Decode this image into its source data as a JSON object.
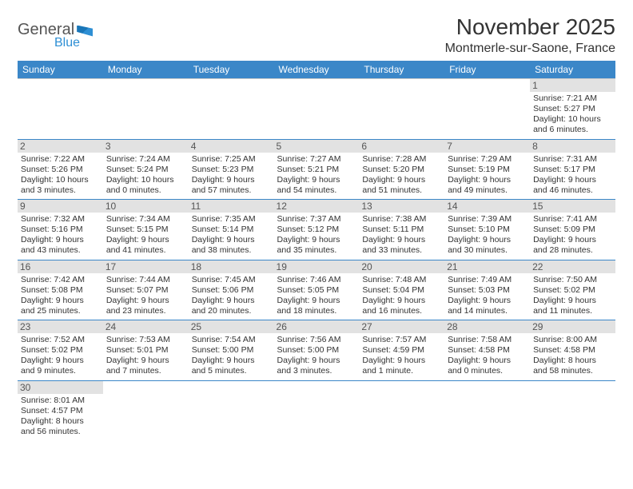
{
  "brand": {
    "part1": "General",
    "part2": "Blue"
  },
  "title": "November 2025",
  "location": "Montmerle-sur-Saone, France",
  "colors": {
    "header_bg": "#3b87c8",
    "header_text": "#ffffff",
    "daynum_bg": "#e2e2e2",
    "border": "#3b87c8",
    "text": "#333333"
  },
  "weekdays": [
    "Sunday",
    "Monday",
    "Tuesday",
    "Wednesday",
    "Thursday",
    "Friday",
    "Saturday"
  ],
  "weeks": [
    [
      {
        "n": "",
        "sr": "",
        "ss": "",
        "dl": ""
      },
      {
        "n": "",
        "sr": "",
        "ss": "",
        "dl": ""
      },
      {
        "n": "",
        "sr": "",
        "ss": "",
        "dl": ""
      },
      {
        "n": "",
        "sr": "",
        "ss": "",
        "dl": ""
      },
      {
        "n": "",
        "sr": "",
        "ss": "",
        "dl": ""
      },
      {
        "n": "",
        "sr": "",
        "ss": "",
        "dl": ""
      },
      {
        "n": "1",
        "sr": "Sunrise: 7:21 AM",
        "ss": "Sunset: 5:27 PM",
        "dl": "Daylight: 10 hours and 6 minutes."
      }
    ],
    [
      {
        "n": "2",
        "sr": "Sunrise: 7:22 AM",
        "ss": "Sunset: 5:26 PM",
        "dl": "Daylight: 10 hours and 3 minutes."
      },
      {
        "n": "3",
        "sr": "Sunrise: 7:24 AM",
        "ss": "Sunset: 5:24 PM",
        "dl": "Daylight: 10 hours and 0 minutes."
      },
      {
        "n": "4",
        "sr": "Sunrise: 7:25 AM",
        "ss": "Sunset: 5:23 PM",
        "dl": "Daylight: 9 hours and 57 minutes."
      },
      {
        "n": "5",
        "sr": "Sunrise: 7:27 AM",
        "ss": "Sunset: 5:21 PM",
        "dl": "Daylight: 9 hours and 54 minutes."
      },
      {
        "n": "6",
        "sr": "Sunrise: 7:28 AM",
        "ss": "Sunset: 5:20 PM",
        "dl": "Daylight: 9 hours and 51 minutes."
      },
      {
        "n": "7",
        "sr": "Sunrise: 7:29 AM",
        "ss": "Sunset: 5:19 PM",
        "dl": "Daylight: 9 hours and 49 minutes."
      },
      {
        "n": "8",
        "sr": "Sunrise: 7:31 AM",
        "ss": "Sunset: 5:17 PM",
        "dl": "Daylight: 9 hours and 46 minutes."
      }
    ],
    [
      {
        "n": "9",
        "sr": "Sunrise: 7:32 AM",
        "ss": "Sunset: 5:16 PM",
        "dl": "Daylight: 9 hours and 43 minutes."
      },
      {
        "n": "10",
        "sr": "Sunrise: 7:34 AM",
        "ss": "Sunset: 5:15 PM",
        "dl": "Daylight: 9 hours and 41 minutes."
      },
      {
        "n": "11",
        "sr": "Sunrise: 7:35 AM",
        "ss": "Sunset: 5:14 PM",
        "dl": "Daylight: 9 hours and 38 minutes."
      },
      {
        "n": "12",
        "sr": "Sunrise: 7:37 AM",
        "ss": "Sunset: 5:12 PM",
        "dl": "Daylight: 9 hours and 35 minutes."
      },
      {
        "n": "13",
        "sr": "Sunrise: 7:38 AM",
        "ss": "Sunset: 5:11 PM",
        "dl": "Daylight: 9 hours and 33 minutes."
      },
      {
        "n": "14",
        "sr": "Sunrise: 7:39 AM",
        "ss": "Sunset: 5:10 PM",
        "dl": "Daylight: 9 hours and 30 minutes."
      },
      {
        "n": "15",
        "sr": "Sunrise: 7:41 AM",
        "ss": "Sunset: 5:09 PM",
        "dl": "Daylight: 9 hours and 28 minutes."
      }
    ],
    [
      {
        "n": "16",
        "sr": "Sunrise: 7:42 AM",
        "ss": "Sunset: 5:08 PM",
        "dl": "Daylight: 9 hours and 25 minutes."
      },
      {
        "n": "17",
        "sr": "Sunrise: 7:44 AM",
        "ss": "Sunset: 5:07 PM",
        "dl": "Daylight: 9 hours and 23 minutes."
      },
      {
        "n": "18",
        "sr": "Sunrise: 7:45 AM",
        "ss": "Sunset: 5:06 PM",
        "dl": "Daylight: 9 hours and 20 minutes."
      },
      {
        "n": "19",
        "sr": "Sunrise: 7:46 AM",
        "ss": "Sunset: 5:05 PM",
        "dl": "Daylight: 9 hours and 18 minutes."
      },
      {
        "n": "20",
        "sr": "Sunrise: 7:48 AM",
        "ss": "Sunset: 5:04 PM",
        "dl": "Daylight: 9 hours and 16 minutes."
      },
      {
        "n": "21",
        "sr": "Sunrise: 7:49 AM",
        "ss": "Sunset: 5:03 PM",
        "dl": "Daylight: 9 hours and 14 minutes."
      },
      {
        "n": "22",
        "sr": "Sunrise: 7:50 AM",
        "ss": "Sunset: 5:02 PM",
        "dl": "Daylight: 9 hours and 11 minutes."
      }
    ],
    [
      {
        "n": "23",
        "sr": "Sunrise: 7:52 AM",
        "ss": "Sunset: 5:02 PM",
        "dl": "Daylight: 9 hours and 9 minutes."
      },
      {
        "n": "24",
        "sr": "Sunrise: 7:53 AM",
        "ss": "Sunset: 5:01 PM",
        "dl": "Daylight: 9 hours and 7 minutes."
      },
      {
        "n": "25",
        "sr": "Sunrise: 7:54 AM",
        "ss": "Sunset: 5:00 PM",
        "dl": "Daylight: 9 hours and 5 minutes."
      },
      {
        "n": "26",
        "sr": "Sunrise: 7:56 AM",
        "ss": "Sunset: 5:00 PM",
        "dl": "Daylight: 9 hours and 3 minutes."
      },
      {
        "n": "27",
        "sr": "Sunrise: 7:57 AM",
        "ss": "Sunset: 4:59 PM",
        "dl": "Daylight: 9 hours and 1 minute."
      },
      {
        "n": "28",
        "sr": "Sunrise: 7:58 AM",
        "ss": "Sunset: 4:58 PM",
        "dl": "Daylight: 9 hours and 0 minutes."
      },
      {
        "n": "29",
        "sr": "Sunrise: 8:00 AM",
        "ss": "Sunset: 4:58 PM",
        "dl": "Daylight: 8 hours and 58 minutes."
      }
    ],
    [
      {
        "n": "30",
        "sr": "Sunrise: 8:01 AM",
        "ss": "Sunset: 4:57 PM",
        "dl": "Daylight: 8 hours and 56 minutes."
      },
      {
        "n": "",
        "sr": "",
        "ss": "",
        "dl": ""
      },
      {
        "n": "",
        "sr": "",
        "ss": "",
        "dl": ""
      },
      {
        "n": "",
        "sr": "",
        "ss": "",
        "dl": ""
      },
      {
        "n": "",
        "sr": "",
        "ss": "",
        "dl": ""
      },
      {
        "n": "",
        "sr": "",
        "ss": "",
        "dl": ""
      },
      {
        "n": "",
        "sr": "",
        "ss": "",
        "dl": ""
      }
    ]
  ]
}
